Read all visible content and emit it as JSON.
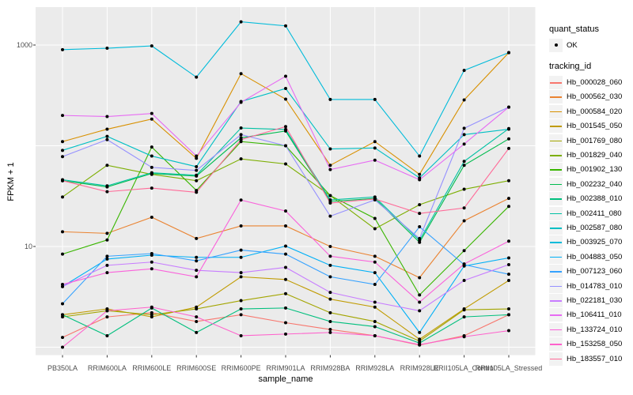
{
  "figure": {
    "background": "#FFFFFF",
    "panel_background": "#EBEBEB",
    "grid_color": "#FFFFFF",
    "point_color": "#000000",
    "tick_mark_color": "#333333",
    "tick_label_color": "#4D4D4D"
  },
  "legend": {
    "quant_status_title": "quant_status",
    "quant_status_items": [
      {
        "label": "OK",
        "symbol": "point"
      }
    ],
    "tracking_title": "tracking_id",
    "key_fill": "#F2F2F2"
  },
  "chart_data": {
    "type": "line",
    "title": "",
    "xlabel": "sample_name",
    "ylabel": "FPKM + 1",
    "y_scale": "log10",
    "ylim": [
      1,
      2400
    ],
    "grid": "on",
    "legend_position": "right",
    "y_ticks": [
      {
        "label": "1000",
        "value": 1000
      },
      {
        "label": "10",
        "value": 10
      }
    ],
    "grid_values": [
      1,
      10,
      100,
      1000
    ],
    "categories": [
      "PB350LA",
      "RRIM600LA",
      "RRIM600LE",
      "RRIM600SE",
      "RRIM600PE",
      "RRIM901LA",
      "RRIM928BA",
      "RRIM928LA",
      "RRIM928LE",
      "RRII105LA_Control",
      "RRII105LA_Stressed"
    ],
    "series": [
      {
        "name": "Hb_000028_060",
        "color": "#F8766D",
        "quant_status": "OK",
        "values": [
          1.25,
          2.0,
          2.2,
          1.8,
          2.1,
          1.75,
          1.5,
          1.3,
          1.05,
          1.3,
          2.1
        ]
      },
      {
        "name": "Hb_000562_030",
        "color": "#EA8331",
        "quant_status": "OK",
        "values": [
          14,
          13.5,
          19.5,
          12,
          16,
          16,
          10,
          8,
          4.9,
          18,
          30
        ]
      },
      {
        "name": "Hb_000584_020",
        "color": "#D89000",
        "quant_status": "OK",
        "values": [
          110,
          146,
          184,
          75,
          520,
          290,
          64,
          110,
          52,
          285,
          840
        ]
      },
      {
        "name": "Hb_001545_050",
        "color": "#C09B00",
        "quant_status": "OK",
        "values": [
          2.1,
          2.4,
          2.0,
          2.5,
          5.0,
          4.7,
          3.0,
          2.5,
          1.2,
          2.4,
          4.6
        ]
      },
      {
        "name": "Hb_001769_080",
        "color": "#A3A500",
        "quant_status": "OK",
        "values": [
          2.0,
          2.3,
          2.1,
          2.4,
          2.9,
          3.4,
          2.2,
          1.8,
          1.15,
          2.35,
          2.4
        ]
      },
      {
        "name": "Hb_001829_040",
        "color": "#7CAE00",
        "quant_status": "OK",
        "values": [
          31,
          64,
          52,
          45,
          74,
          66,
          32,
          15,
          26,
          37,
          45
        ]
      },
      {
        "name": "Hb_001902_130",
        "color": "#39B600",
        "quant_status": "OK",
        "values": [
          8.4,
          11.6,
          97,
          36,
          110,
          100,
          32,
          19,
          3.3,
          9.1,
          25
        ]
      },
      {
        "name": "Hb_002232_040",
        "color": "#00BB4E",
        "quant_status": "OK",
        "values": [
          45,
          39,
          53,
          50,
          120,
          140,
          28,
          30,
          11,
          64,
          117
        ]
      },
      {
        "name": "Hb_002388_010",
        "color": "#00BF7D",
        "quant_status": "OK",
        "values": [
          2.1,
          1.3,
          2.45,
          1.4,
          2.4,
          2.45,
          1.8,
          1.6,
          1.1,
          2.0,
          2.1
        ]
      },
      {
        "name": "Hb_002411_080",
        "color": "#00C1A3",
        "quant_status": "OK",
        "values": [
          46,
          40,
          54,
          51,
          150,
          145,
          29,
          31,
          11.5,
          70,
          148
        ]
      },
      {
        "name": "Hb_002587_080",
        "color": "#00BFC4",
        "quant_status": "OK",
        "values": [
          90,
          124,
          79,
          62,
          275,
          370,
          93,
          95,
          48,
          129,
          146
        ]
      },
      {
        "name": "Hb_003925_070",
        "color": "#00BBDA",
        "quant_status": "OK",
        "values": [
          900,
          930,
          980,
          480,
          1700,
          1550,
          288,
          288,
          79,
          560,
          840
        ]
      },
      {
        "name": "Hb_004883_050",
        "color": "#00B0F6",
        "quant_status": "OK",
        "values": [
          4.0,
          7.5,
          8.2,
          7.8,
          7.8,
          10.1,
          6.5,
          5.5,
          1.4,
          6.4,
          7.7
        ]
      },
      {
        "name": "Hb_007123_060",
        "color": "#35A2FF",
        "quant_status": "OK",
        "values": [
          2.7,
          8.0,
          8.5,
          7.2,
          9.2,
          8.4,
          5.0,
          4.2,
          15.7,
          6.6,
          5.3
        ]
      },
      {
        "name": "Hb_014783_010",
        "color": "#9590FF",
        "quant_status": "OK",
        "values": [
          78,
          115,
          61,
          57,
          129,
          100,
          20,
          29,
          12,
          149,
          242
        ]
      },
      {
        "name": "Hb_022181_030",
        "color": "#C77CFF",
        "quant_status": "OK",
        "values": [
          4.0,
          6.5,
          7.0,
          5.8,
          5.5,
          6.2,
          3.5,
          2.8,
          2.3,
          4.6,
          6.6
        ]
      },
      {
        "name": "Hb_106411_010",
        "color": "#E76BF3",
        "quant_status": "OK",
        "values": [
          200,
          195,
          209,
          79,
          270,
          490,
          58,
          72,
          46,
          104,
          242
        ]
      },
      {
        "name": "Hb_133724_010",
        "color": "#FA62DB",
        "quant_status": "OK",
        "values": [
          4.2,
          5.5,
          6.0,
          5.0,
          28.9,
          22.5,
          8.0,
          7.0,
          2.8,
          6.7,
          11.3
        ]
      },
      {
        "name": "Hb_153258_050",
        "color": "#FF61CC",
        "quant_status": "OK",
        "values": [
          1.0,
          2.3,
          2.5,
          2.0,
          1.3,
          1.35,
          1.4,
          1.3,
          1.06,
          1.27,
          1.46
        ]
      },
      {
        "name": "Hb_183557_010",
        "color": "#FF6A98",
        "quant_status": "OK",
        "values": [
          45,
          35,
          38,
          34.5,
          115,
          155,
          27,
          29.6,
          21.3,
          24.1,
          94
        ]
      }
    ]
  }
}
